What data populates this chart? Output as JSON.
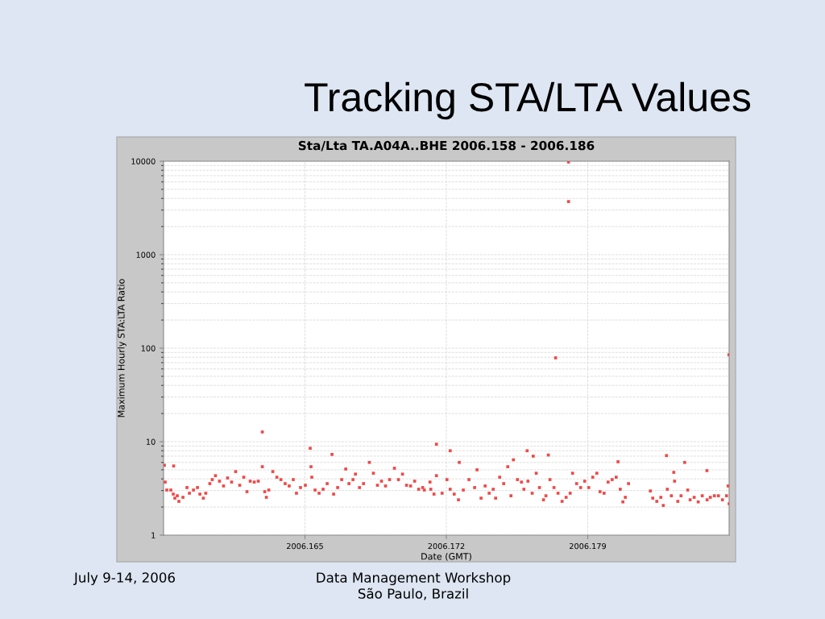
{
  "chart_data": {
    "type": "scatter",
    "title": "Tracking STA/LTA Values",
    "subtitle": "Sta/Lta TA.A04A..BHE 2006.158 - 2006.186",
    "xlabel": "Date (GMT)",
    "ylabel": "Maximum Hourly STA:LTA Ratio",
    "annotations": [
      "July 9-14, 2006",
      "Data Management Workshop\nSão Paulo, Brazil"
    ],
    "log": "y",
    "grid": true,
    "marker": "square",
    "xlim": [
      2006.158,
      2006.186
    ],
    "xticks": [
      2006.165,
      2006.172,
      2006.179
    ],
    "ylim": [
      1,
      10000
    ],
    "yticks": [
      1,
      10,
      100,
      1000,
      10000
    ],
    "series": [
      {
        "color": "#f04848",
        "x": [
          2006.15804,
          2006.1585,
          2006.16289,
          2006.16526,
          2006.16634,
          2006.16819,
          2006.17151,
          2006.17219,
          2006.17264,
          2006.176,
          2006.17705,
          2006.17741,
          2006.17805,
          2006.17805,
          2006.1829,
          2006.1838,
          2006.1849,
          2006.18599,
          2006.1805,
          2006.1763,
          2006.15808,
          2006.15816,
          2006.15836,
          2006.15848,
          2006.15856,
          2006.15868,
          2006.15876,
          2006.15896,
          2006.15916,
          2006.15928,
          2006.15948,
          2006.15968,
          2006.1598,
          2006.15997,
          2006.16009,
          2006.16029,
          2006.16041,
          2006.16057,
          2006.16077,
          2006.16097,
          2006.16117,
          2006.16137,
          2006.16157,
          2006.16177,
          2006.16197,
          2006.16213,
          2006.16229,
          2006.16249,
          2006.16269,
          2006.16289,
          2006.16301,
          2006.16309,
          2006.16321,
          2006.16341,
          2006.16361,
          2006.16381,
          2006.16402,
          2006.16422,
          2006.16442,
          2006.16458,
          2006.16478,
          2006.16502,
          2006.1653,
          2006.16534,
          2006.1655,
          2006.1657,
          2006.1659,
          2006.1661,
          2006.16642,
          2006.16662,
          2006.16682,
          2006.16702,
          2006.16718,
          2006.16738,
          2006.1675,
          2006.1677,
          2006.1679,
          2006.16839,
          2006.16859,
          2006.16879,
          2006.16899,
          2006.16919,
          2006.16943,
          2006.16963,
          2006.16983,
          2006.17003,
          2006.17023,
          2006.17043,
          2006.17063,
          2006.17091,
          2006.17119,
          2006.17083,
          2006.17123,
          2006.17139,
          2006.17151,
          2006.17179,
          2006.17203,
          2006.17219,
          2006.17239,
          2006.1726,
          2006.17284,
          2006.17312,
          2006.1734,
          2006.17352,
          2006.17372,
          2006.17392,
          2006.17412,
          2006.17432,
          2006.17444,
          2006.17464,
          2006.17484,
          2006.17504,
          2006.1752,
          2006.17532,
          2006.17552,
          2006.17572,
          2006.17584,
          2006.17604,
          2006.17625,
          2006.17645,
          2006.17661,
          2006.17681,
          2006.17693,
          2006.17713,
          2006.17733,
          2006.17753,
          2006.17773,
          2006.17793,
          2006.17813,
          2006.17825,
          2006.17845,
          2006.17865,
          2006.17885,
          2006.17905,
          2006.17925,
          2006.17945,
          2006.17961,
          2006.17981,
          2006.18001,
          2006.18021,
          2006.18041,
          2006.18061,
          2006.18074,
          2006.18086,
          2006.18102,
          2006.1821,
          2006.18222,
          2006.18242,
          2006.18262,
          2006.18274,
          2006.18294,
          2006.18314,
          2006.18326,
          2006.1833,
          2006.18346,
          2006.18362,
          2006.18395,
          2006.18407,
          2006.18427,
          2006.18447,
          2006.18467,
          2006.18491,
          2006.18507,
          2006.18527,
          2006.18547,
          2006.18567,
          2006.18587,
          2006.18595,
          2006.186
        ],
        "values": [
          5.6,
          5.5,
          12.7,
          8.5,
          7.3,
          6.0,
          9.4,
          8.0,
          6.0,
          8.0,
          7.2,
          78.8,
          9800,
          3700,
          7.1,
          6.0,
          4.9,
          85,
          6.1,
          7.0,
          3.7,
          3.04,
          3.04,
          2.75,
          2.49,
          2.64,
          2.3,
          2.54,
          3.23,
          2.81,
          3.04,
          3.23,
          2.75,
          2.49,
          2.81,
          3.56,
          3.93,
          4.33,
          3.78,
          3.36,
          4.09,
          3.7,
          4.79,
          3.42,
          4.17,
          2.92,
          3.78,
          3.7,
          3.78,
          5.4,
          2.92,
          2.54,
          3.04,
          4.79,
          4.17,
          3.93,
          3.56,
          3.36,
          3.93,
          2.81,
          3.23,
          3.42,
          5.4,
          4.17,
          3.04,
          2.81,
          3.1,
          3.56,
          2.75,
          3.23,
          3.93,
          5.1,
          3.56,
          3.93,
          4.5,
          3.23,
          3.56,
          4.6,
          3.42,
          3.78,
          3.36,
          3.93,
          5.2,
          3.93,
          4.5,
          3.42,
          3.36,
          3.78,
          3.1,
          3.04,
          3.7,
          3.23,
          3.1,
          2.75,
          4.33,
          2.81,
          3.93,
          3.1,
          2.75,
          2.39,
          3.04,
          3.93,
          3.23,
          5.0,
          2.49,
          3.36,
          2.81,
          3.1,
          2.49,
          4.17,
          3.56,
          5.4,
          2.64,
          6.4,
          3.93,
          3.7,
          3.1,
          3.78,
          2.81,
          4.6,
          3.23,
          2.39,
          2.64,
          3.93,
          3.23,
          2.81,
          2.3,
          2.54,
          2.81,
          4.6,
          3.56,
          3.23,
          3.78,
          3.23,
          4.17,
          4.6,
          2.92,
          2.81,
          3.7,
          3.93,
          4.17,
          3.1,
          2.27,
          2.54,
          3.56,
          2.97,
          2.49,
          2.3,
          2.54,
          2.08,
          3.1,
          2.64,
          4.7,
          3.78,
          2.3,
          2.64,
          3.04,
          2.39,
          2.54,
          2.27,
          2.64,
          2.39,
          2.54,
          2.64,
          2.64,
          2.39,
          2.64,
          3.36,
          2.17
        ]
      }
    ]
  }
}
